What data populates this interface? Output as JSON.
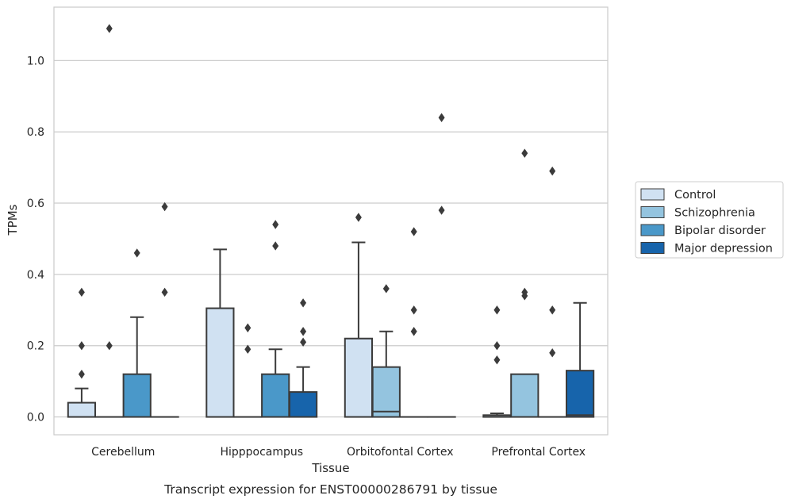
{
  "chart_data": {
    "type": "box",
    "xlabel": "Tissue",
    "ylabel": "TPMs",
    "caption": "Transcript expression for ENST00000286791 by tissue",
    "ylim": [
      -0.05,
      1.15
    ],
    "yticks": [
      0.0,
      0.2,
      0.4,
      0.6,
      0.8,
      1.0
    ],
    "ytick_labels": [
      "0.0",
      "0.2",
      "0.4",
      "0.6",
      "0.8",
      "1.0"
    ],
    "grid": true,
    "legend_position": "right",
    "categories": [
      "Cerebellum",
      "Hipppocampus",
      "Orbitofontal Cortex",
      "Prefrontal Cortex"
    ],
    "series": [
      {
        "name": "Control",
        "color": "#d0e1f2",
        "boxes": [
          {
            "q1": 0.0,
            "median": 0.0,
            "q3": 0.04,
            "whisker_low": 0.0,
            "whisker_high": 0.08,
            "outliers": [
              0.12,
              0.2,
              0.35
            ]
          },
          {
            "q1": 0.0,
            "median": 0.0,
            "q3": 0.305,
            "whisker_low": 0.0,
            "whisker_high": 0.47,
            "outliers": []
          },
          {
            "q1": 0.0,
            "median": 0.0,
            "q3": 0.22,
            "whisker_low": 0.0,
            "whisker_high": 0.49,
            "outliers": [
              0.56
            ]
          },
          {
            "q1": 0.0,
            "median": 0.0,
            "q3": 0.005,
            "whisker_low": 0.0,
            "whisker_high": 0.01,
            "outliers": [
              0.16,
              0.2,
              0.3
            ]
          }
        ]
      },
      {
        "name": "Schizophrenia",
        "color": "#94c4df",
        "boxes": [
          {
            "q1": 0.0,
            "median": 0.0,
            "q3": 0.0,
            "whisker_low": 0.0,
            "whisker_high": 0.0,
            "outliers": [
              0.2,
              1.09
            ]
          },
          {
            "q1": 0.0,
            "median": 0.0,
            "q3": 0.0,
            "whisker_low": 0.0,
            "whisker_high": 0.0,
            "outliers": [
              0.19,
              0.25
            ]
          },
          {
            "q1": 0.0,
            "median": 0.015,
            "q3": 0.14,
            "whisker_low": 0.0,
            "whisker_high": 0.24,
            "outliers": [
              0.36
            ]
          },
          {
            "q1": 0.0,
            "median": 0.0,
            "q3": 0.12,
            "whisker_low": 0.0,
            "whisker_high": 0.12,
            "outliers": [
              0.34,
              0.35,
              0.74
            ]
          }
        ]
      },
      {
        "name": "Bipolar disorder",
        "color": "#4a98c9",
        "boxes": [
          {
            "q1": 0.0,
            "median": 0.0,
            "q3": 0.12,
            "whisker_low": 0.0,
            "whisker_high": 0.28,
            "outliers": [
              0.46
            ]
          },
          {
            "q1": 0.0,
            "median": 0.0,
            "q3": 0.12,
            "whisker_low": 0.0,
            "whisker_high": 0.19,
            "outliers": [
              0.48,
              0.54
            ]
          },
          {
            "q1": 0.0,
            "median": 0.0,
            "q3": 0.0,
            "whisker_low": 0.0,
            "whisker_high": 0.0,
            "outliers": [
              0.24,
              0.3,
              0.52
            ]
          },
          {
            "q1": 0.0,
            "median": 0.0,
            "q3": 0.0,
            "whisker_low": 0.0,
            "whisker_high": 0.0,
            "outliers": [
              0.18,
              0.3,
              0.69
            ]
          }
        ]
      },
      {
        "name": "Major depression",
        "color": "#1764ab",
        "boxes": [
          {
            "q1": 0.0,
            "median": 0.0,
            "q3": 0.0,
            "whisker_low": 0.0,
            "whisker_high": 0.0,
            "outliers": [
              0.35,
              0.59
            ]
          },
          {
            "q1": 0.0,
            "median": 0.0,
            "q3": 0.07,
            "whisker_low": 0.0,
            "whisker_high": 0.14,
            "outliers": [
              0.21,
              0.24,
              0.32
            ]
          },
          {
            "q1": 0.0,
            "median": 0.0,
            "q3": 0.0,
            "whisker_low": 0.0,
            "whisker_high": 0.0,
            "outliers": [
              0.58,
              0.84
            ]
          },
          {
            "q1": 0.0,
            "median": 0.005,
            "q3": 0.13,
            "whisker_low": 0.0,
            "whisker_high": 0.32,
            "outliers": []
          }
        ]
      }
    ]
  }
}
